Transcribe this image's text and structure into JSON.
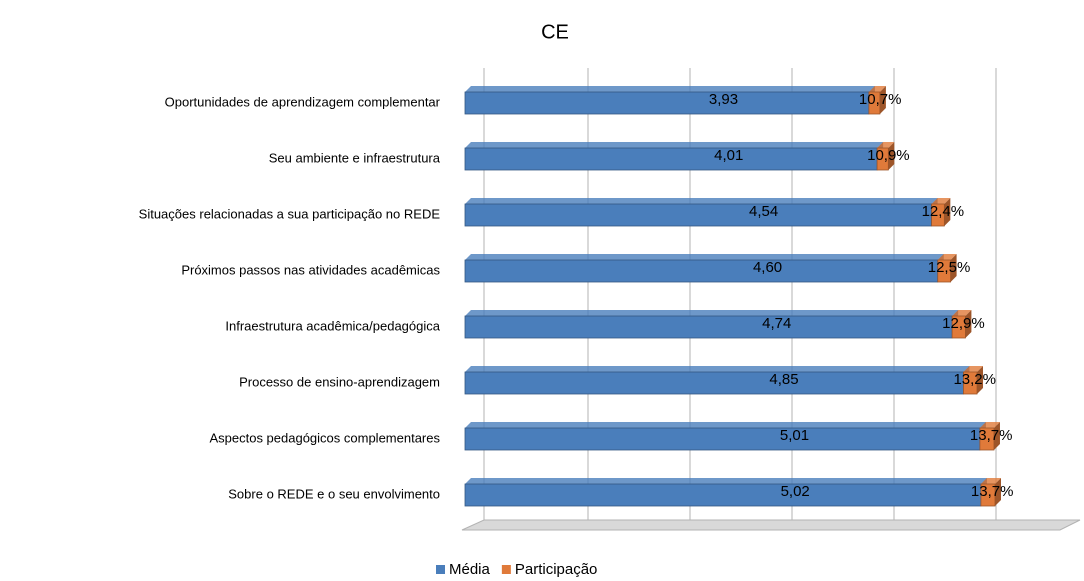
{
  "chart_data": {
    "type": "bar",
    "orientation": "horizontal",
    "stacked": true,
    "title": "CE",
    "categories": [
      "Oportunidades de aprendizagem complementar",
      "Seu ambiente e infraestrutura",
      "Situações relacionadas a sua participação no REDE",
      "Próximos passos nas atividades acadêmicas",
      "Infraestrutura acadêmica/pedagógica",
      "Processo de ensino-aprendizagem",
      "Aspectos pedagógicos complementares",
      "Sobre o REDE e o seu envolvimento"
    ],
    "series": [
      {
        "name": "Média",
        "color": "#4a7ebb",
        "values": [
          3.93,
          4.01,
          4.54,
          4.6,
          4.74,
          4.85,
          5.01,
          5.02
        ],
        "value_labels": [
          "3,93",
          "4,01",
          "4,54",
          "4,60",
          "4,74",
          "4,85",
          "5,01",
          "5,02"
        ]
      },
      {
        "name": "Participação",
        "color": "#e07a3a",
        "values": [
          10.7,
          10.9,
          12.4,
          12.5,
          12.9,
          13.2,
          13.7,
          13.7
        ],
        "value_labels": [
          "10,7%",
          "10,9%",
          "12,4%",
          "12,5%",
          "12,9%",
          "13,2%",
          "13,7%",
          "13,7%"
        ]
      }
    ],
    "legend": "bottom"
  }
}
